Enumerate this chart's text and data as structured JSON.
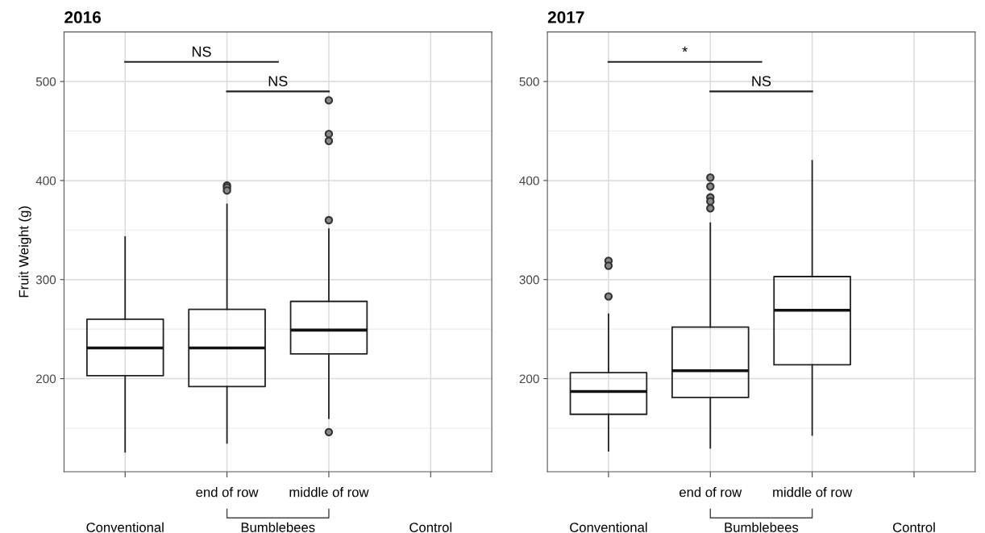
{
  "chart_data": [
    {
      "type": "box",
      "title": "2016",
      "ylabel": "Fruit Weight (g)",
      "categories": [
        "Conventional",
        "end of row",
        "middle of row",
        "Control"
      ],
      "boxes": [
        {
          "low": 126,
          "q1": 203,
          "median": 231,
          "q3": 260,
          "high": 343
        },
        {
          "low": 135,
          "q1": 192,
          "median": 231,
          "q3": 270,
          "high": 376,
          "outliers": [
            395,
            393,
            390
          ]
        },
        {
          "low": 160,
          "q1": 225,
          "median": 249,
          "q3": 278,
          "high": 351,
          "outliers": [
            481,
            447,
            440,
            360,
            146
          ]
        },
        null
      ],
      "ylim": [
        106,
        550
      ],
      "yticks": [
        200,
        300,
        400,
        500
      ],
      "grid": true,
      "annotations": [
        "NS",
        "NS",
        "Bumblebees"
      ]
    },
    {
      "type": "box",
      "title": "2017",
      "categories": [
        "Conventional",
        "end of row",
        "middle of row",
        "Control"
      ],
      "boxes": [
        {
          "low": 127,
          "q1": 164,
          "median": 187,
          "q3": 206,
          "high": 265,
          "outliers": [
            319,
            314,
            283
          ]
        },
        {
          "low": 130,
          "q1": 181,
          "median": 208,
          "q3": 252,
          "high": 357,
          "outliers": [
            403,
            394,
            383,
            379,
            372
          ]
        },
        {
          "low": 143,
          "q1": 214,
          "median": 269,
          "q3": 303,
          "high": 420
        },
        null
      ],
      "ylim": [
        106,
        550
      ],
      "yticks": [
        200,
        300,
        400,
        500
      ],
      "grid": true,
      "annotations": [
        "*",
        "NS",
        "Bumblebees"
      ]
    }
  ]
}
